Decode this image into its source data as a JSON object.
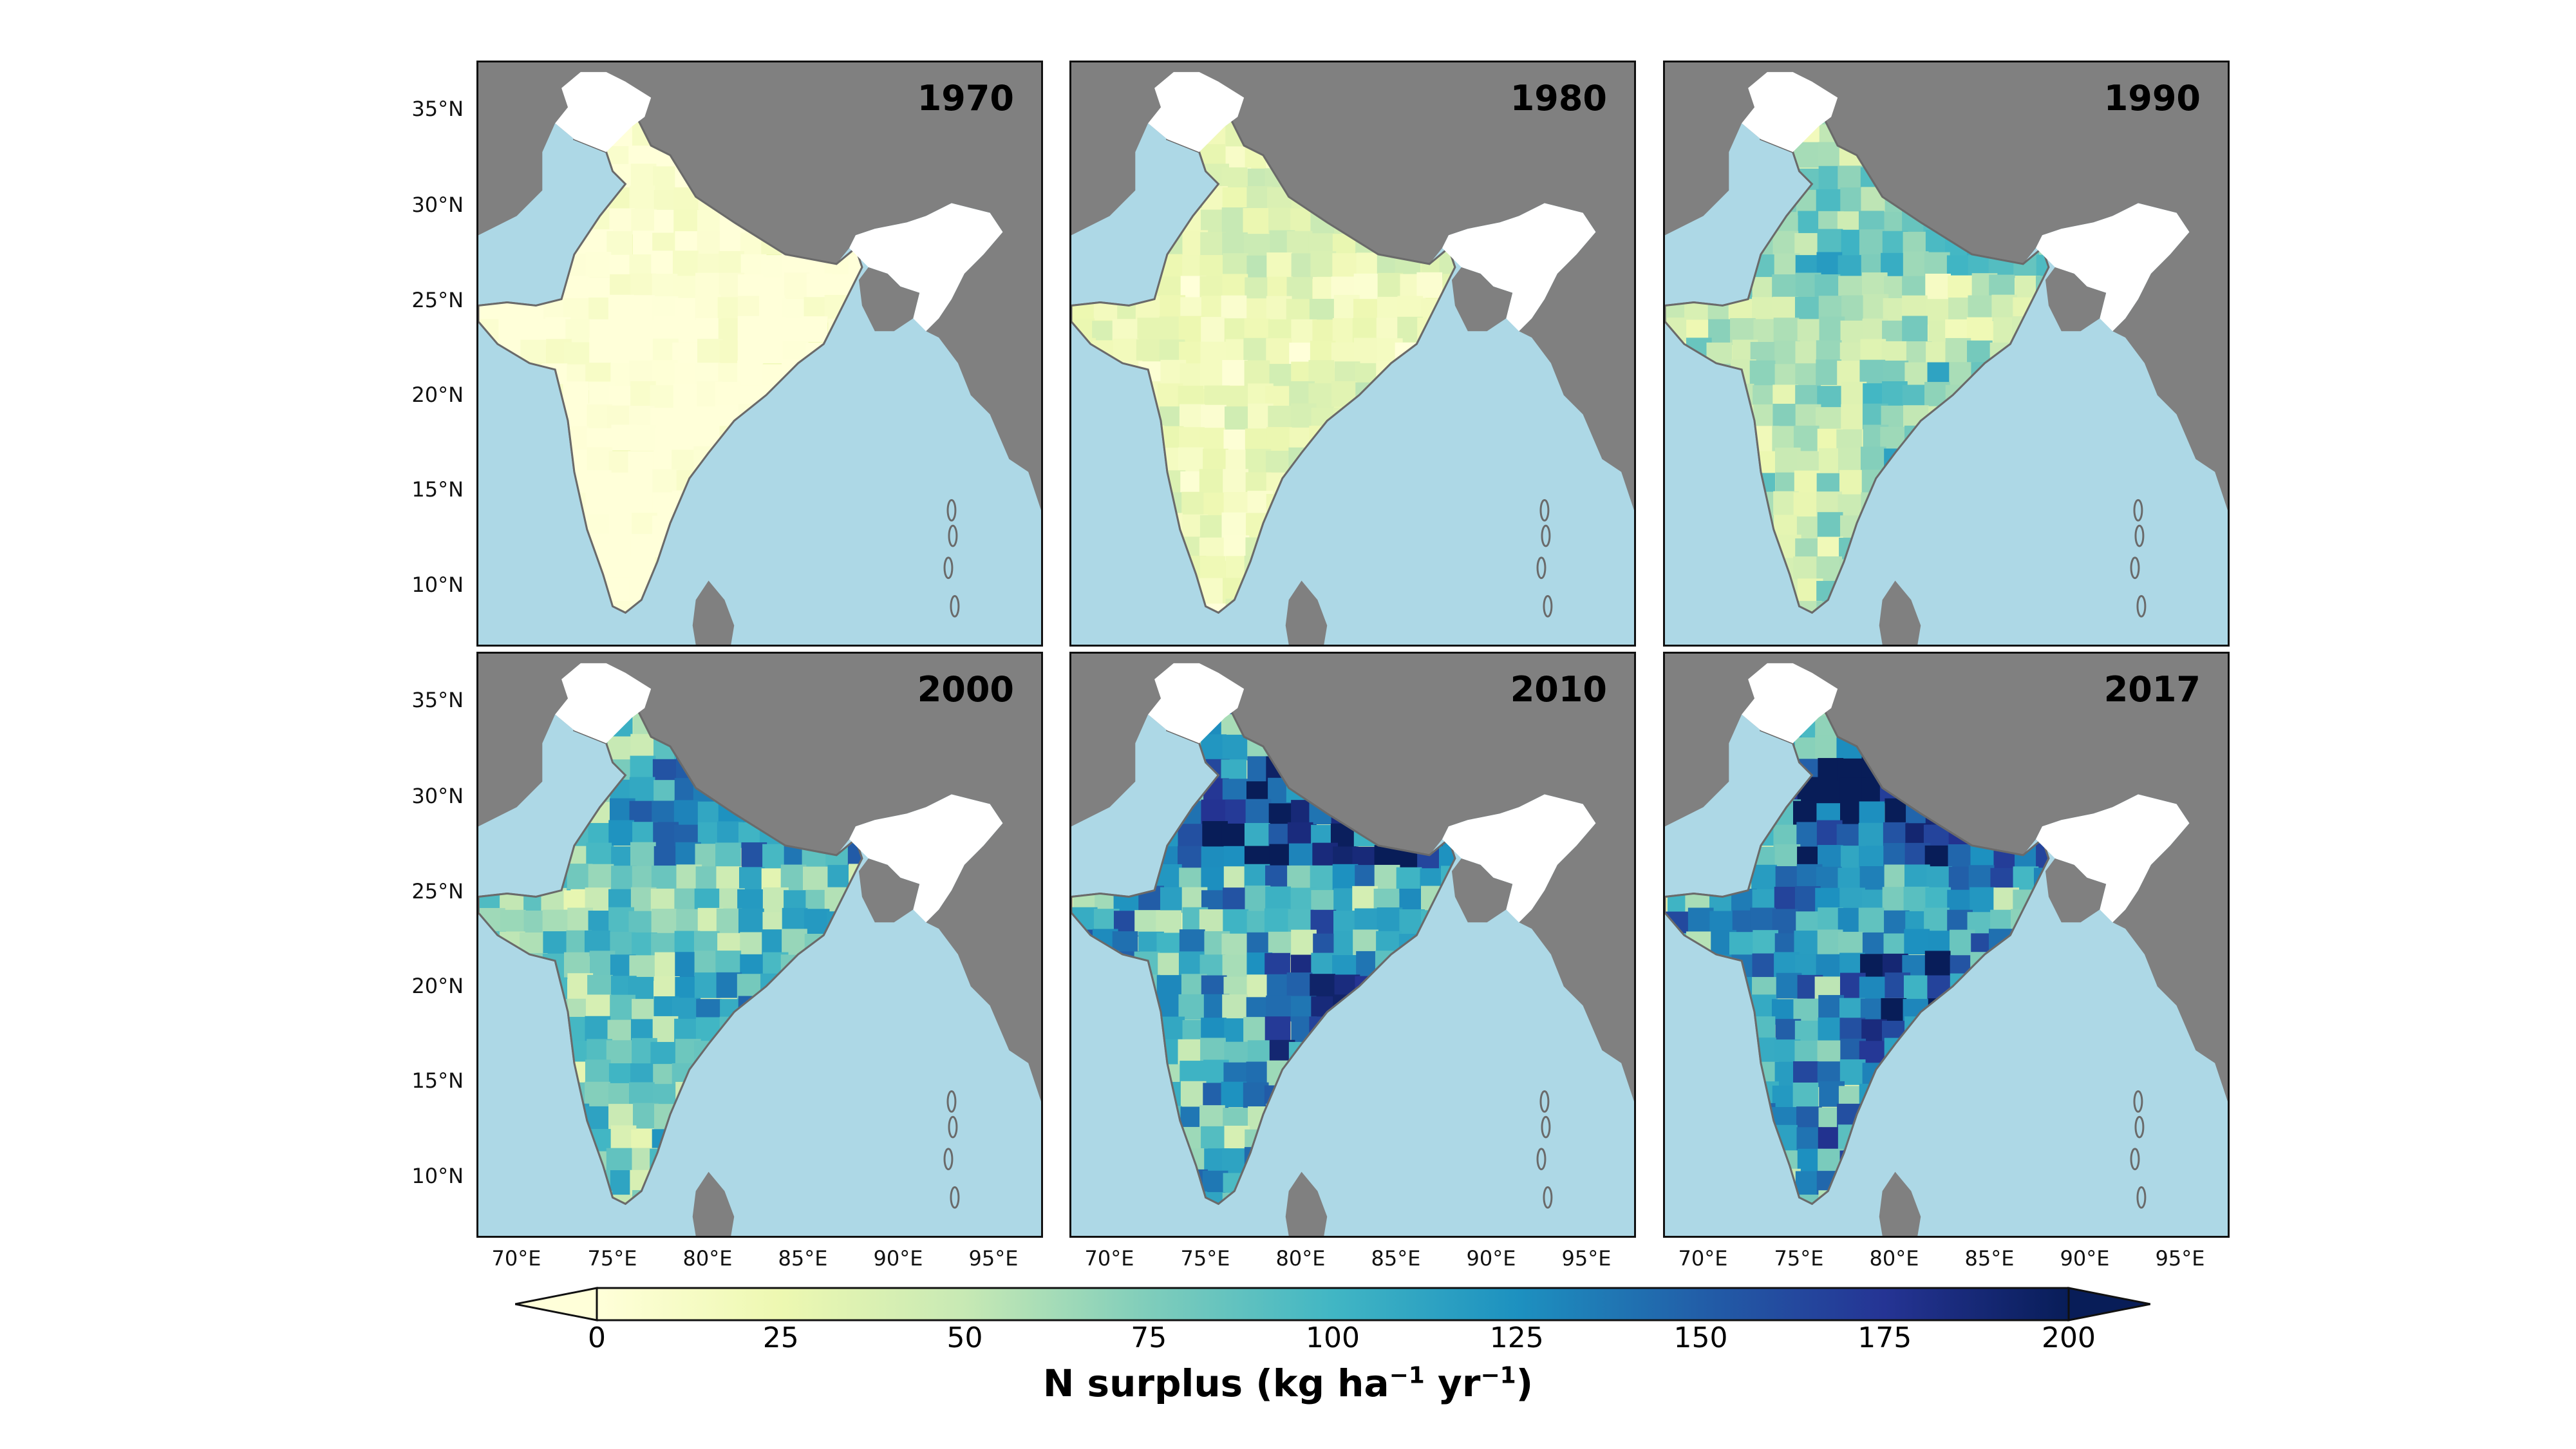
{
  "panels": [
    {
      "year": "1970",
      "level": 0.05
    },
    {
      "year": "1980",
      "level": 0.22
    },
    {
      "year": "1990",
      "level": 0.45
    },
    {
      "year": "2000",
      "level": 0.62
    },
    {
      "year": "2010",
      "level": 0.82
    },
    {
      "year": "2017",
      "level": 0.88
    }
  ],
  "lat_labels": [
    "35°N",
    "30°N",
    "25°N",
    "20°N",
    "15°N",
    "10°N"
  ],
  "lon_labels": [
    "70°E",
    "75°E",
    "80°E",
    "85°E",
    "90°E",
    "95°E"
  ],
  "colorbar": {
    "ticks": [
      "0",
      "25",
      "50",
      "75",
      "100",
      "125",
      "150",
      "175",
      "200"
    ],
    "label_main": "N surplus (kg ha",
    "label_exp1": "−1",
    "label_mid": " yr",
    "label_exp2": "−1",
    "label_end": ")",
    "min": 0,
    "max": 200,
    "cmap": "YlGnBu"
  },
  "colors": {
    "ocean": "#add8e6",
    "land_outside": "#808080",
    "no_data": "#ffffff"
  }
}
